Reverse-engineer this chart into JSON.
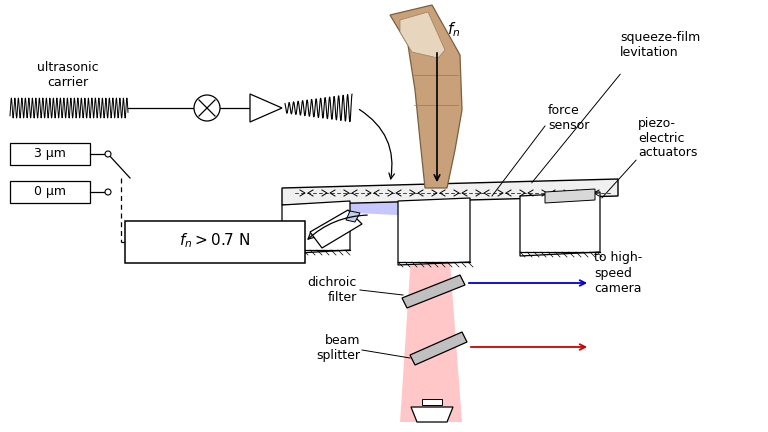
{
  "bg_color": "#ffffff",
  "labels": {
    "ultrasonic_carrier": "ultrasonic\ncarrier",
    "squeeze_film": "squeeze-film\nlevitation",
    "force_sensor": "force\nsensor",
    "piezo": "piezo-\nelectric\nactuators",
    "dichroic_filter": "dichroic\nfilter",
    "beam_splitter": "beam\nsplitter",
    "to_high_speed": "to high-\nspeed\ncamera",
    "fn_label": "$f_n$",
    "fn_box": "$f_n > 0.7$ N",
    "um3": "3 μm",
    "um0": "0 μm"
  },
  "colors": {
    "red_beam": "#ffaaaa",
    "blue_beam": "#aaaaff",
    "finger_fill": "#c8a07a",
    "finger_outline": "#7a6040",
    "nail_fill": "#e8d5be",
    "blue_arrow": "#0000cc",
    "red_arrow": "#cc0000"
  }
}
